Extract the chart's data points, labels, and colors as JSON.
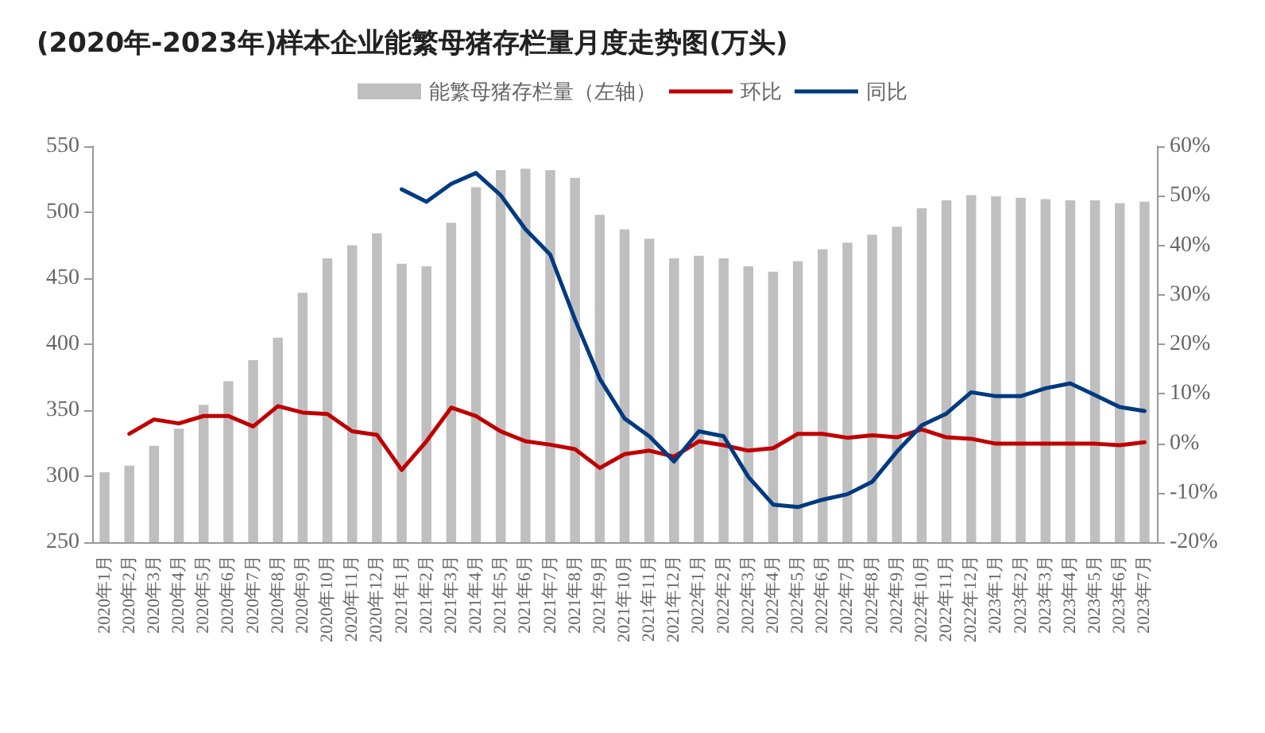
{
  "chart_data": {
    "type": "bar",
    "title": "(2020年-2023年)样本企业能繁母猪存栏量月度走势图(万头)",
    "categories": [
      "2020年1月",
      "2020年2月",
      "2020年3月",
      "2020年4月",
      "2020年5月",
      "2020年6月",
      "2020年7月",
      "2020年8月",
      "2020年9月",
      "2020年10月",
      "2020年11月",
      "2020年12月",
      "2021年1月",
      "2021年2月",
      "2021年3月",
      "2021年4月",
      "2021年5月",
      "2021年6月",
      "2021年7月",
      "2021年8月",
      "2021年9月",
      "2021年10月",
      "2021年11月",
      "2021年12月",
      "2022年1月",
      "2022年2月",
      "2022年3月",
      "2022年4月",
      "2022年5月",
      "2022年6月",
      "2022年7月",
      "2022年8月",
      "2022年9月",
      "2022年10月",
      "2022年11月",
      "2022年12月",
      "2023年1月",
      "2023年2月",
      "2023年3月",
      "2023年4月",
      "2023年5月",
      "2023年6月",
      "2023年7月"
    ],
    "series": [
      {
        "name": "能繁母猪存栏量（左轴）",
        "color": "#bfbfbf",
        "values": [
          303,
          308,
          323,
          336,
          354,
          372,
          388,
          405,
          439,
          465,
          475,
          484,
          461,
          459,
          492,
          519,
          532,
          533,
          532,
          526,
          498,
          487,
          480,
          465,
          467,
          465,
          459,
          455,
          463,
          472,
          477,
          483,
          489,
          503,
          509,
          513,
          512,
          511,
          510,
          509,
          509,
          507,
          508
        ]
      },
      {
        "name": "环比",
        "type": "line",
        "axis": "y2",
        "color": "#c00000",
        "values": [
          null,
          1.9,
          4.8,
          4.0,
          5.5,
          5.5,
          3.4,
          7.5,
          6.2,
          5.9,
          2.4,
          1.7,
          -5.4,
          0.4,
          7.2,
          5.5,
          2.4,
          0.4,
          -0.3,
          -1.2,
          -5.0,
          -2.2,
          -1.5,
          -2.7,
          0.4,
          -0.4,
          -1.5,
          -1.0,
          1.9,
          1.9,
          1.1,
          1.6,
          1.2,
          2.8,
          1.2,
          0.9,
          -0.1,
          -0.1,
          -0.1,
          -0.1,
          -0.1,
          -0.4,
          0.2
        ]
      },
      {
        "name": "同比",
        "type": "line",
        "axis": "y2",
        "color": "#003a80",
        "values": [
          null,
          null,
          null,
          null,
          null,
          null,
          null,
          null,
          null,
          null,
          null,
          null,
          51.3,
          48.8,
          52.4,
          54.6,
          50.1,
          43.2,
          38.1,
          25.0,
          13.0,
          5.0,
          1.4,
          -3.7,
          2.4,
          1.4,
          -6.8,
          -12.4,
          -12.9,
          -11.4,
          -10.3,
          -7.8,
          -1.7,
          3.6,
          6.0,
          10.3,
          9.5,
          9.5,
          11.1,
          12.1,
          9.7,
          7.3,
          6.5
        ]
      }
    ],
    "ylim": [
      250,
      550
    ],
    "yticks": [
      250,
      300,
      350,
      400,
      450,
      500,
      550
    ],
    "y2lim": [
      -20,
      60
    ],
    "y2ticks": [
      {
        "value": -20,
        "label": "-20%"
      },
      {
        "value": -10,
        "label": "-10%"
      },
      {
        "value": 0,
        "label": "0%"
      },
      {
        "value": 10,
        "label": "10%"
      },
      {
        "value": 20,
        "label": "20%"
      },
      {
        "value": 30,
        "label": "30%"
      },
      {
        "value": 40,
        "label": "40%"
      },
      {
        "value": 50,
        "label": "50%"
      },
      {
        "value": 60,
        "label": "60%"
      }
    ],
    "legend": "top",
    "grid": false,
    "marker": "none"
  }
}
